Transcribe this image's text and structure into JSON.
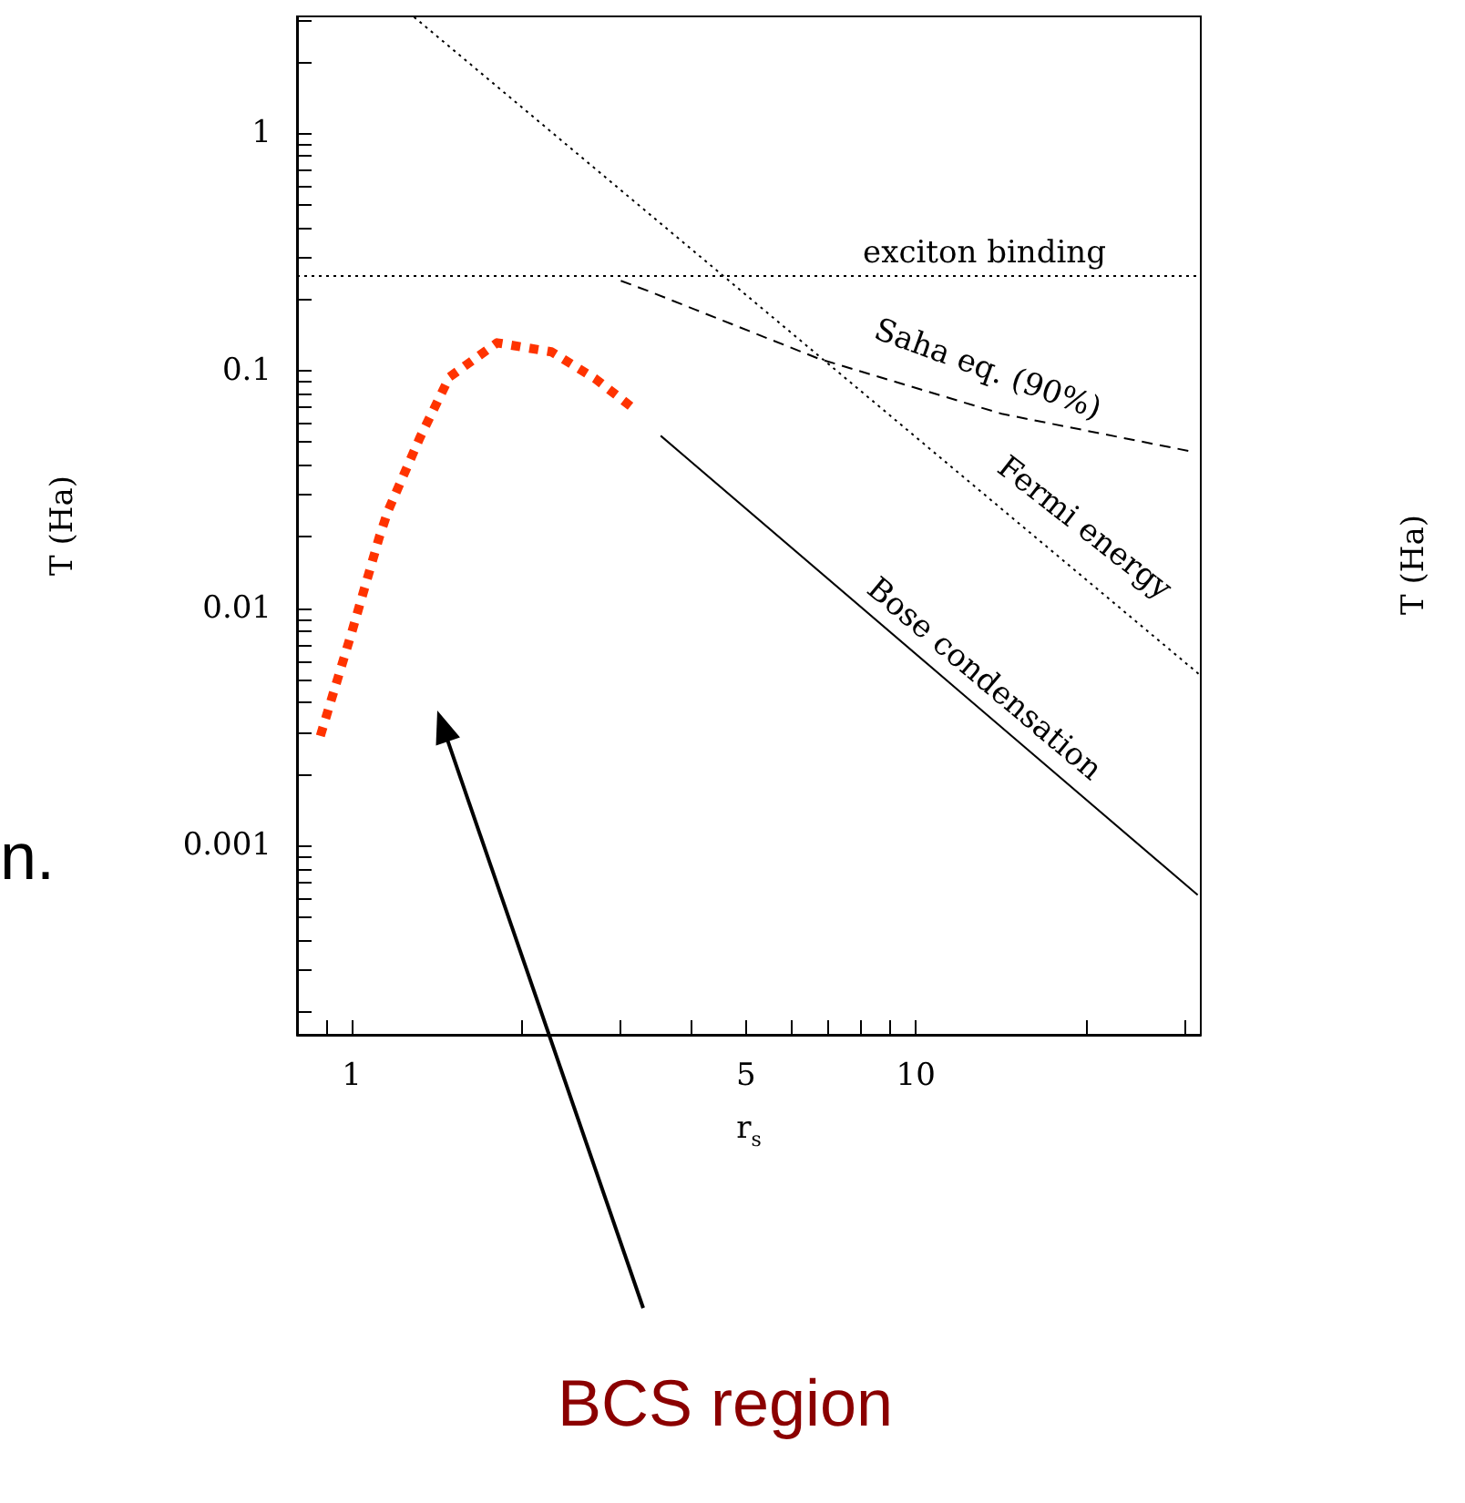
{
  "chart_data": {
    "type": "line",
    "xlabel": "r$_{s}$",
    "ylabel": "T (Ha)",
    "log": "xy",
    "grid": false,
    "marker": "none",
    "xlim": [
      0.8,
      32
    ],
    "ylim": [
      0.00016,
      3.1
    ],
    "xticks": [
      {
        "value": 0.9,
        "label": null
      },
      1,
      {
        "value": 2,
        "label": null
      },
      {
        "value": 3,
        "label": null
      },
      {
        "value": 4,
        "label": null
      },
      5,
      {
        "value": 6,
        "label": null
      },
      {
        "value": 7,
        "label": null
      },
      {
        "value": 8,
        "label": null
      },
      {
        "value": 9,
        "label": null
      },
      10,
      {
        "value": 20,
        "label": null
      },
      {
        "value": 30,
        "label": null
      }
    ],
    "yticks": [
      {
        "value": 0.0002,
        "label": null
      },
      {
        "value": 0.0003,
        "label": null
      },
      {
        "value": 0.0004,
        "label": null
      },
      {
        "value": 0.0005,
        "label": null
      },
      {
        "value": 0.0006,
        "label": null
      },
      {
        "value": 0.0007,
        "label": null
      },
      {
        "value": 0.0008,
        "label": null
      },
      {
        "value": 0.0009,
        "label": null
      },
      0.001,
      {
        "value": 0.002,
        "label": null
      },
      {
        "value": 0.003,
        "label": null
      },
      {
        "value": 0.004,
        "label": null
      },
      {
        "value": 0.005,
        "label": null
      },
      {
        "value": 0.006,
        "label": null
      },
      {
        "value": 0.007,
        "label": null
      },
      {
        "value": 0.008,
        "label": null
      },
      {
        "value": 0.009,
        "label": null
      },
      0.01,
      {
        "value": 0.02,
        "label": null
      },
      {
        "value": 0.03,
        "label": null
      },
      {
        "value": 0.04,
        "label": null
      },
      {
        "value": 0.05,
        "label": null
      },
      {
        "value": 0.06,
        "label": null
      },
      {
        "value": 0.07,
        "label": null
      },
      {
        "value": 0.08,
        "label": null
      },
      {
        "value": 0.09,
        "label": null
      },
      0.1,
      {
        "value": 0.2,
        "label": null
      },
      {
        "value": 0.3,
        "label": null
      },
      {
        "value": 0.4,
        "label": null
      },
      {
        "value": 0.5,
        "label": null
      },
      {
        "value": 0.6,
        "label": null
      },
      {
        "value": 0.7,
        "label": null
      },
      {
        "value": 0.8,
        "label": null
      },
      {
        "value": 0.9,
        "label": null
      },
      1,
      {
        "value": 2,
        "label": null
      },
      {
        "value": 3,
        "label": null
      }
    ],
    "series": [
      {
        "color": "#000000",
        "line_style": "dotted",
        "x": [
          1.29,
          32
        ],
        "values": [
          3.08,
          0.0052
        ]
      },
      {
        "color": "#000000",
        "line_style": "dashed",
        "x": [
          3.0,
          3.38,
          6.75,
          14.2,
          31.2
        ],
        "values": [
          0.239,
          0.215,
          0.112,
          0.0658,
          0.0454
        ]
      },
      {
        "color": "#000000",
        "line_style": "solid",
        "x": [
          3.53,
          31.6
        ],
        "values": [
          0.0532,
          0.00062
        ]
      },
      {
        "color": "#ff3300",
        "line_style": "dotted",
        "x": [
          0.88,
          1.0,
          1.12,
          1.16,
          1.32,
          1.49,
          1.81,
          2.26,
          2.71,
          3.16
        ],
        "values": [
          0.0029,
          0.0079,
          0.02,
          0.0257,
          0.052,
          0.094,
          0.131,
          0.12,
          0.092,
          0.0693
        ]
      }
    ],
    "ref_lines": [
      {
        "axis": "y",
        "value": 0.25,
        "label": "exciton binding",
        "color": "#000000",
        "line_style": "dotted"
      }
    ],
    "annotations": [
      "Saha eq. (90%)",
      "Fermi energy",
      "Bose condensation",
      "BCS region",
      "n.",
      "T (Ha)"
    ]
  }
}
